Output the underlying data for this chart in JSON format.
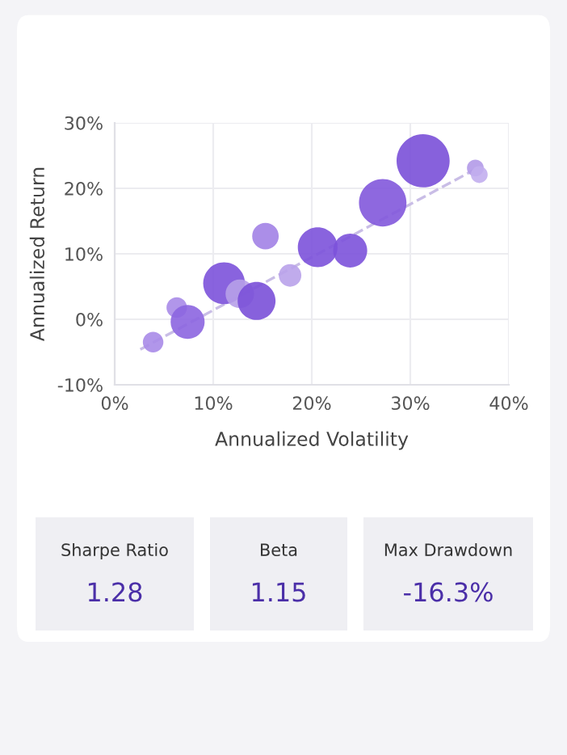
{
  "chart_data": [
    {
      "type": "bubble",
      "xlabel": "Annualized Volatility",
      "ylabel": "Annualized Return",
      "xlim": [
        0,
        40
      ],
      "ylim": [
        -10,
        30
      ],
      "xticks": [
        {
          "value": 0,
          "label": "0%"
        },
        {
          "value": 10,
          "label": "10%"
        },
        {
          "value": 20,
          "label": "20%"
        },
        {
          "value": 30,
          "label": "30%"
        },
        {
          "value": 40,
          "label": "40%"
        }
      ],
      "yticks": [
        {
          "value": -10,
          "label": "-10%"
        },
        {
          "value": 0,
          "label": "0%"
        },
        {
          "value": 10,
          "label": "10%"
        },
        {
          "value": 20,
          "label": "20%"
        },
        {
          "value": 30,
          "label": "30%"
        }
      ],
      "grid": true,
      "legend": false,
      "series": [
        {
          "type": "line",
          "x": [
            2.6,
            36.7
          ],
          "values": [
            -4.6,
            23.0
          ],
          "color": "#c9bde6",
          "line_style": "dashed",
          "marker": "none"
        },
        {
          "type": "bubble",
          "x": [
            3.9,
            6.3,
            7.4,
            11.1,
            12.7,
            14.4,
            15.3,
            17.8,
            20.6,
            23.9,
            27.2,
            31.3,
            36.6,
            37.0
          ],
          "values": [
            -3.5,
            1.8,
            -0.4,
            5.5,
            3.9,
            2.8,
            12.7,
            6.7,
            11.0,
            10.5,
            17.8,
            24.2,
            23.1,
            22.1
          ],
          "sizes": [
            0.15,
            0.15,
            0.41,
            0.62,
            0.29,
            0.51,
            0.25,
            0.18,
            0.56,
            0.41,
            0.8,
            1,
            0.1,
            0.1
          ],
          "colors": [
            "#a98be8",
            "#a98be8",
            "#8c65e0",
            "#7c52da",
            "#b7a0e8",
            "#7a50d8",
            "#a282e6",
            "#b9a2ea",
            "#7c52da",
            "#7c52da",
            "#8258dc",
            "#7a50d8",
            "#b39ae8",
            "#c2aeee"
          ]
        }
      ]
    },
    {
      "type": "other",
      "title": "Sharpe Ratio",
      "annotations": [
        "1.28"
      ]
    },
    {
      "type": "other",
      "title": "Beta",
      "annotations": [
        "1.15"
      ]
    },
    {
      "type": "other",
      "title": "Max Drawdown",
      "annotations": [
        "-16.3%"
      ]
    }
  ]
}
